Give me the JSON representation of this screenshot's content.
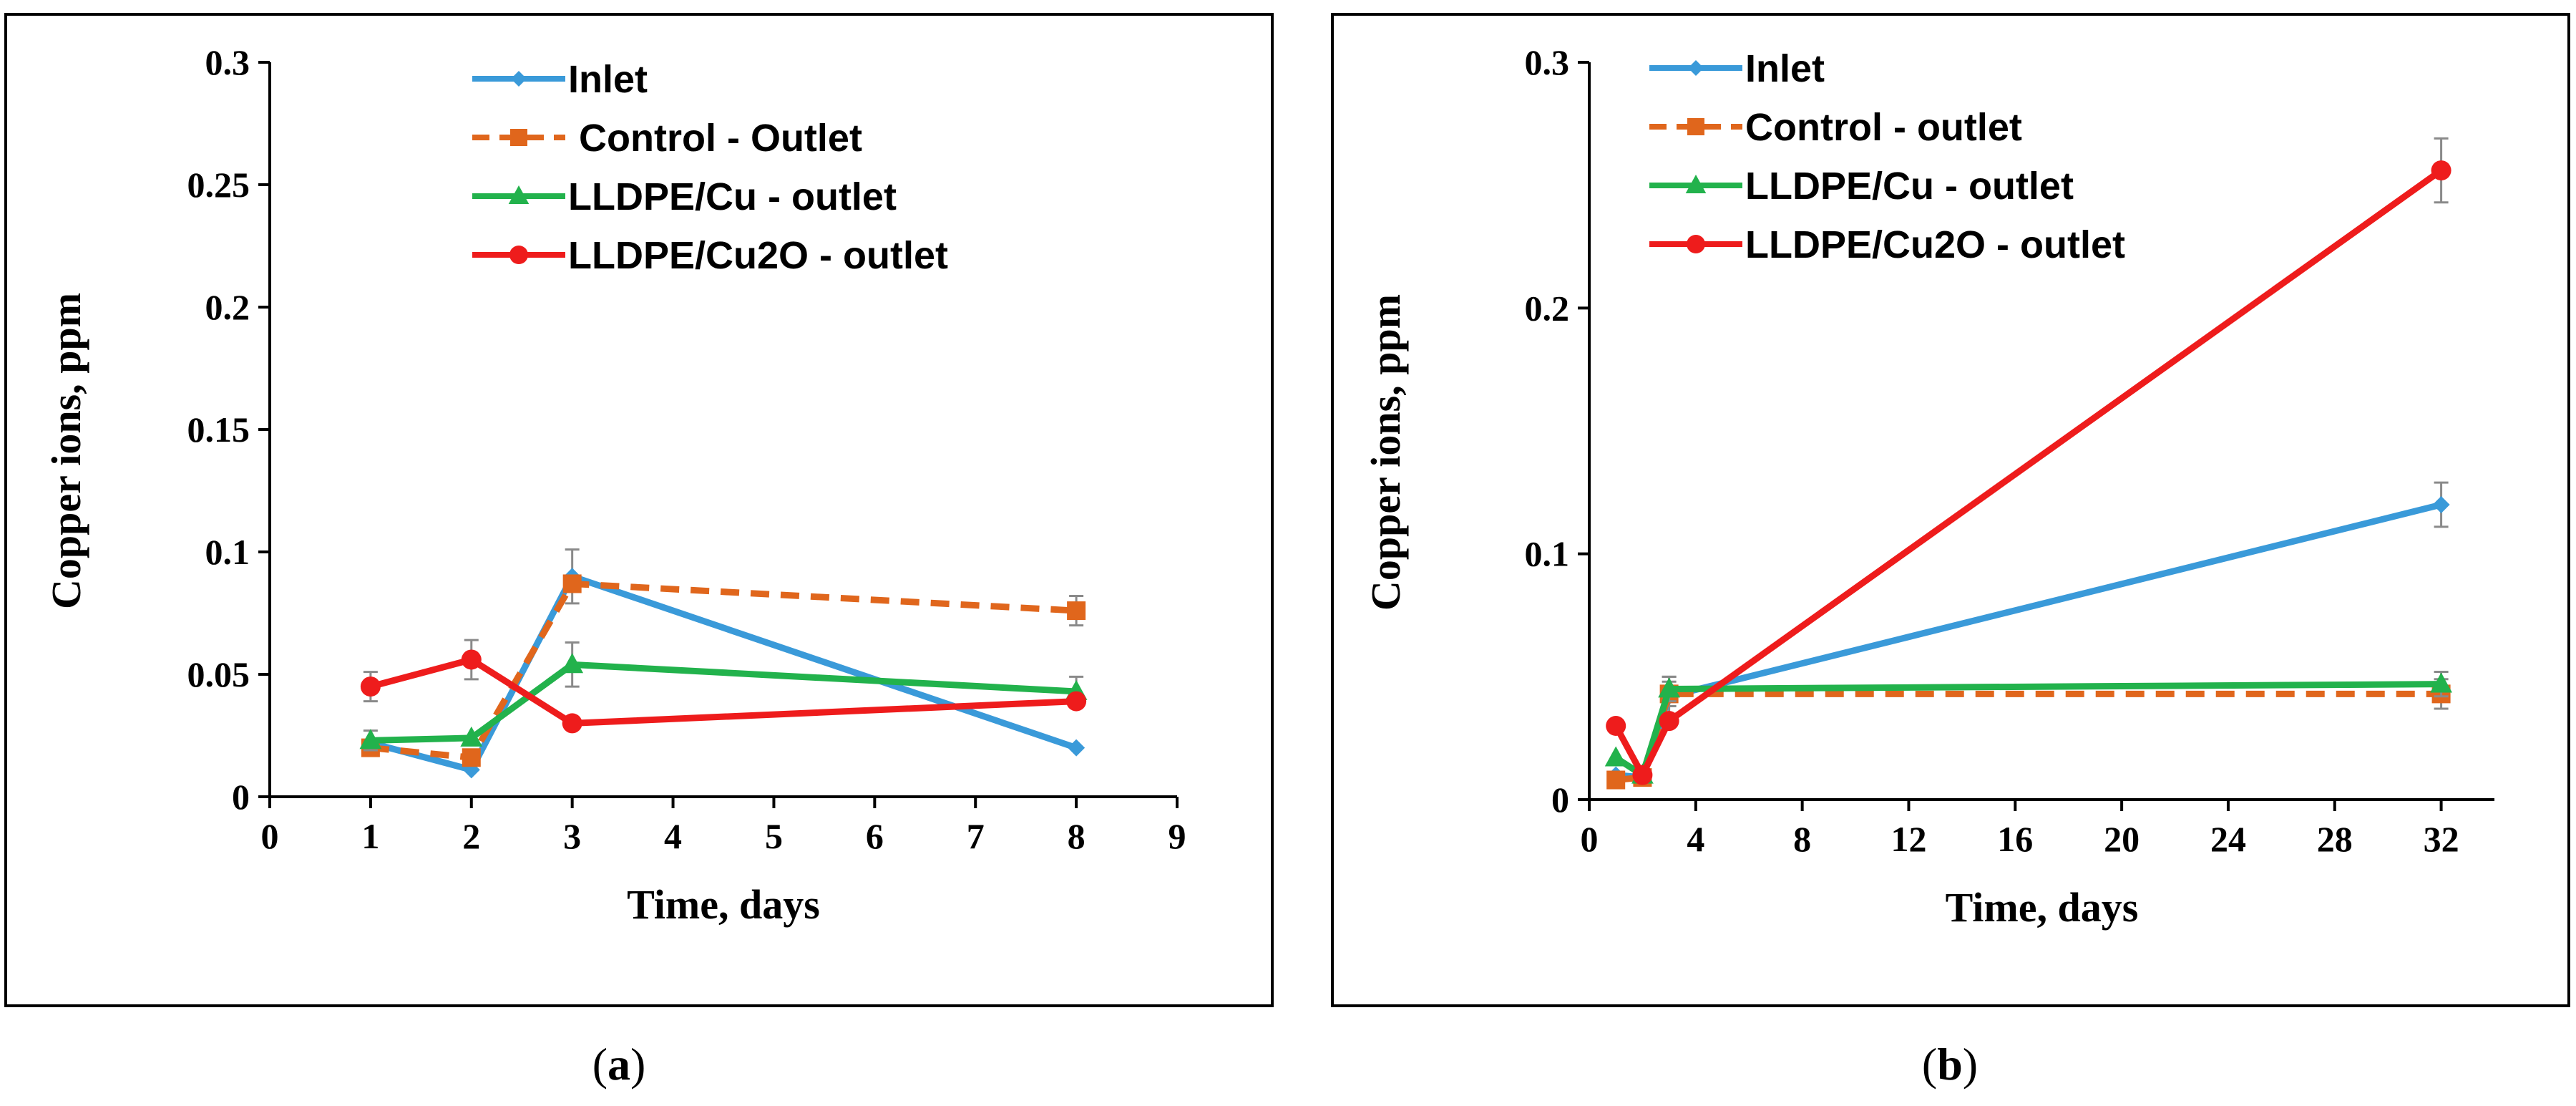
{
  "chart_data": [
    {
      "id": "a",
      "type": "line",
      "caption": {
        "open": "(",
        "letter": "a",
        "close": ")"
      },
      "xlabel": "Time, days",
      "ylabel": "Copper ions, ppm",
      "xlim": [
        0,
        9
      ],
      "ylim": [
        0,
        0.3
      ],
      "xticks": [
        0,
        1,
        2,
        3,
        4,
        5,
        6,
        7,
        8,
        9
      ],
      "xtick_labels": [
        "0",
        "1",
        "2",
        "3",
        "4",
        "5",
        "6",
        "7",
        "8",
        "9"
      ],
      "yticks": [
        0,
        0.05,
        0.1,
        0.15,
        0.2,
        0.25,
        0.3
      ],
      "ytick_labels": [
        "0",
        "0.05",
        "0.1",
        "0.15",
        "0.2",
        "0.25",
        "0.3"
      ],
      "legend_position": "top-right",
      "series": [
        {
          "name": "Inlet",
          "legend_label": "Inlet",
          "color": "#3a9ad9",
          "marker": "diamond",
          "dashed": false,
          "x": [
            1,
            2,
            3,
            8
          ],
          "y": [
            0.022,
            0.011,
            0.09,
            0.02
          ],
          "err": [
            0.0,
            0.0,
            0.011,
            0.0
          ]
        },
        {
          "name": "Control - Outlet",
          "legend_label": " Control - Outlet",
          "color": "#e0661c",
          "marker": "square",
          "dashed": true,
          "x": [
            1,
            2,
            3,
            8
          ],
          "y": [
            0.02,
            0.016,
            0.087,
            0.076
          ],
          "err": [
            0.0,
            0.0,
            0.0,
            0.006
          ]
        },
        {
          "name": "LLDPE/Cu - outlet",
          "legend_label": "LLDPE/Cu - outlet",
          "color": "#22b24c",
          "marker": "triangle",
          "dashed": false,
          "x": [
            1,
            2,
            3,
            8
          ],
          "y": [
            0.023,
            0.024,
            0.054,
            0.043
          ],
          "err": [
            0.004,
            0.0,
            0.009,
            0.006
          ]
        },
        {
          "name": "LLDPE/Cu2O - outlet",
          "legend_label": "LLDPE/Cu2O - outlet",
          "color": "#ee1c1c",
          "marker": "circle",
          "dashed": false,
          "x": [
            1,
            2,
            3,
            8
          ],
          "y": [
            0.045,
            0.056,
            0.03,
            0.039
          ],
          "err": [
            0.006,
            0.008,
            0.0,
            0.0
          ]
        }
      ]
    },
    {
      "id": "b",
      "type": "line",
      "caption": {
        "open": "(",
        "letter": "b",
        "close": ")"
      },
      "xlabel": "Time, days",
      "ylabel": "Copper ions, ppm",
      "xlim": [
        0,
        34
      ],
      "ylim": [
        0,
        0.3
      ],
      "xticks": [
        0,
        4,
        8,
        12,
        16,
        20,
        24,
        28,
        32
      ],
      "xtick_labels": [
        "0",
        "4",
        "8",
        "12",
        "16",
        "20",
        "24",
        "28",
        "32"
      ],
      "yticks": [
        0,
        0.1,
        0.2,
        0.3
      ],
      "ytick_labels": [
        "0",
        "0.1",
        "0.2",
        "0.3"
      ],
      "legend_position": "top-left",
      "series": [
        {
          "name": "Inlet",
          "legend_label": "Inlet",
          "color": "#3a9ad9",
          "marker": "diamond",
          "dashed": false,
          "x": [
            1,
            2,
            3,
            32
          ],
          "y": [
            0.01,
            0.009,
            0.042,
            0.12
          ],
          "err": [
            0.0,
            0.0,
            0.008,
            0.009
          ]
        },
        {
          "name": "Control - outlet",
          "legend_label": "Control - outlet",
          "color": "#e0661c",
          "marker": "square",
          "dashed": true,
          "x": [
            1,
            2,
            3,
            32
          ],
          "y": [
            0.008,
            0.009,
            0.043,
            0.043
          ],
          "err": [
            0.0,
            0.0,
            0.005,
            0.006
          ]
        },
        {
          "name": "LLDPE/Cu - outlet",
          "legend_label": "LLDPE/Cu - outlet",
          "color": "#22b24c",
          "marker": "triangle",
          "dashed": false,
          "x": [
            1,
            2,
            3,
            32
          ],
          "y": [
            0.017,
            0.01,
            0.045,
            0.047
          ],
          "err": [
            0.0,
            0.0,
            0.005,
            0.005
          ]
        },
        {
          "name": "LLDPE/Cu2O - outlet",
          "legend_label": "LLDPE/Cu2O - outlet",
          "color": "#ee1c1c",
          "marker": "circle",
          "dashed": false,
          "x": [
            1,
            2,
            3,
            32
          ],
          "y": [
            0.03,
            0.01,
            0.032,
            0.256
          ],
          "err": [
            0.0,
            0.0,
            0.0,
            0.013
          ]
        }
      ]
    }
  ]
}
